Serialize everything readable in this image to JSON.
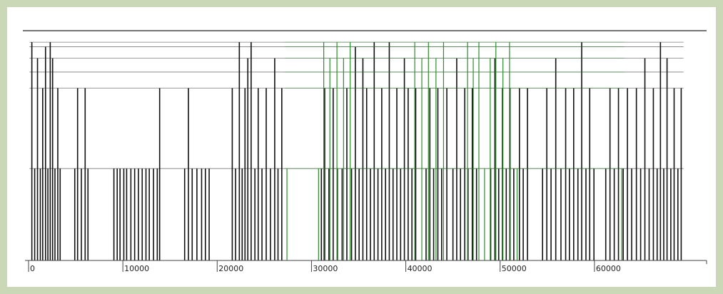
{
  "chart_data": {
    "type": "line",
    "title": "",
    "xlabel": "",
    "ylabel": "",
    "xlim": [
      0,
      70000
    ],
    "ylim": [
      0,
      1
    ],
    "grid": false,
    "legend": "none",
    "x_ticks": [
      0,
      10000,
      20000,
      30000,
      40000,
      50000,
      60000
    ],
    "x_tick_labels": [
      "0",
      "10000",
      "20000",
      "30000",
      "40000",
      "50000",
      "60000"
    ],
    "levels": [
      0.4,
      0.75,
      0.82,
      0.88,
      0.93,
      0.95
    ],
    "series": [
      {
        "color": "#111111",
        "events": [
          [
            350,
            0.95
          ],
          [
            650,
            0.4
          ],
          [
            950,
            0.88
          ],
          [
            1250,
            0.4
          ],
          [
            1500,
            0.75
          ],
          [
            1800,
            0.93
          ],
          [
            2050,
            0.4
          ],
          [
            2300,
            0.95
          ],
          [
            2550,
            0.88
          ],
          [
            2800,
            0.4
          ],
          [
            3100,
            0.75
          ],
          [
            3350,
            0.4
          ],
          [
            4900,
            0.4
          ],
          [
            5200,
            0.75
          ],
          [
            5600,
            0.4
          ],
          [
            6000,
            0.75
          ],
          [
            6300,
            0.4
          ],
          [
            9050,
            0.4
          ],
          [
            9400,
            0.4
          ],
          [
            9700,
            0.4
          ],
          [
            10100,
            0.4
          ],
          [
            10400,
            0.4
          ],
          [
            10850,
            0.4
          ],
          [
            11250,
            0.4
          ],
          [
            11650,
            0.4
          ],
          [
            12050,
            0.4
          ],
          [
            12450,
            0.4
          ],
          [
            12800,
            0.4
          ],
          [
            13250,
            0.4
          ],
          [
            13650,
            0.4
          ],
          [
            13900,
            0.75
          ],
          [
            16550,
            0.4
          ],
          [
            16950,
            0.75
          ],
          [
            17350,
            0.4
          ],
          [
            17850,
            0.4
          ],
          [
            18350,
            0.4
          ],
          [
            18750,
            0.4
          ],
          [
            19150,
            0.4
          ],
          [
            21600,
            0.75
          ],
          [
            21950,
            0.4
          ],
          [
            22350,
            0.95
          ],
          [
            22650,
            0.4
          ],
          [
            22950,
            0.75
          ],
          [
            23250,
            0.88
          ],
          [
            23600,
            0.95
          ],
          [
            24000,
            0.4
          ],
          [
            24350,
            0.75
          ],
          [
            24750,
            0.4
          ],
          [
            25200,
            0.75
          ],
          [
            25650,
            0.4
          ],
          [
            26100,
            0.88
          ],
          [
            26450,
            0.4
          ],
          [
            26850,
            0.75
          ],
          [
            31050,
            0.4
          ],
          [
            31400,
            0.75
          ],
          [
            31850,
            0.4
          ],
          [
            32300,
            0.75
          ],
          [
            32750,
            0.4
          ],
          [
            33250,
            0.4
          ],
          [
            33750,
            0.75
          ],
          [
            34250,
            0.4
          ],
          [
            34650,
            0.93
          ],
          [
            35050,
            0.4
          ],
          [
            35450,
            0.88
          ],
          [
            35850,
            0.75
          ],
          [
            36250,
            0.4
          ],
          [
            36650,
            0.95
          ],
          [
            37050,
            0.4
          ],
          [
            37450,
            0.75
          ],
          [
            37850,
            0.4
          ],
          [
            38250,
            0.95
          ],
          [
            38650,
            0.4
          ],
          [
            39050,
            0.75
          ],
          [
            39450,
            0.4
          ],
          [
            39850,
            0.88
          ],
          [
            40250,
            0.75
          ],
          [
            40650,
            0.4
          ],
          [
            41050,
            0.75
          ],
          [
            42150,
            0.4
          ],
          [
            42550,
            0.75
          ],
          [
            42950,
            0.4
          ],
          [
            43400,
            0.75
          ],
          [
            43800,
            0.4
          ],
          [
            44350,
            0.75
          ],
          [
            45000,
            0.4
          ],
          [
            45400,
            0.88
          ],
          [
            45800,
            0.4
          ],
          [
            46250,
            0.75
          ],
          [
            46600,
            0.4
          ],
          [
            47050,
            0.75
          ],
          [
            47500,
            0.4
          ],
          [
            49000,
            0.4
          ],
          [
            49450,
            0.88
          ],
          [
            49850,
            0.4
          ],
          [
            50250,
            0.75
          ],
          [
            50650,
            0.4
          ],
          [
            51050,
            0.75
          ],
          [
            51450,
            0.4
          ],
          [
            52050,
            0.75
          ],
          [
            52450,
            0.4
          ],
          [
            52900,
            0.75
          ],
          [
            54500,
            0.4
          ],
          [
            54950,
            0.75
          ],
          [
            55400,
            0.4
          ],
          [
            55900,
            0.88
          ],
          [
            56450,
            0.4
          ],
          [
            56950,
            0.75
          ],
          [
            57350,
            0.4
          ],
          [
            57800,
            0.75
          ],
          [
            58250,
            0.4
          ],
          [
            58650,
            0.95
          ],
          [
            59100,
            0.4
          ],
          [
            59500,
            0.75
          ],
          [
            59950,
            0.4
          ],
          [
            61200,
            0.4
          ],
          [
            61650,
            0.75
          ],
          [
            62100,
            0.4
          ],
          [
            62550,
            0.75
          ],
          [
            63050,
            0.4
          ],
          [
            63500,
            0.75
          ],
          [
            63950,
            0.4
          ],
          [
            64450,
            0.75
          ],
          [
            64900,
            0.4
          ],
          [
            65350,
            0.88
          ],
          [
            65800,
            0.4
          ],
          [
            66250,
            0.75
          ],
          [
            66650,
            0.4
          ],
          [
            67000,
            0.95
          ],
          [
            67350,
            0.4
          ],
          [
            67700,
            0.88
          ],
          [
            68100,
            0.4
          ],
          [
            68450,
            0.75
          ],
          [
            68850,
            0.4
          ],
          [
            69200,
            0.75
          ]
        ]
      },
      {
        "color": "#2e8b2e",
        "events": [
          [
            27400,
            0.4
          ],
          [
            30750,
            0.4
          ],
          [
            31300,
            0.95
          ],
          [
            31950,
            0.88
          ],
          [
            32700,
            0.95
          ],
          [
            33400,
            0.88
          ],
          [
            34100,
            0.95
          ],
          [
            40950,
            0.95
          ],
          [
            41700,
            0.88
          ],
          [
            42400,
            0.95
          ],
          [
            43200,
            0.88
          ],
          [
            44000,
            0.95
          ],
          [
            46550,
            0.95
          ],
          [
            47150,
            0.88
          ],
          [
            47750,
            0.95
          ],
          [
            48350,
            0.4
          ],
          [
            48950,
            0.88
          ],
          [
            49550,
            0.95
          ],
          [
            50300,
            0.88
          ],
          [
            51000,
            0.95
          ],
          [
            51800,
            0.4
          ],
          [
            62900,
            0.4
          ]
        ]
      }
    ]
  }
}
